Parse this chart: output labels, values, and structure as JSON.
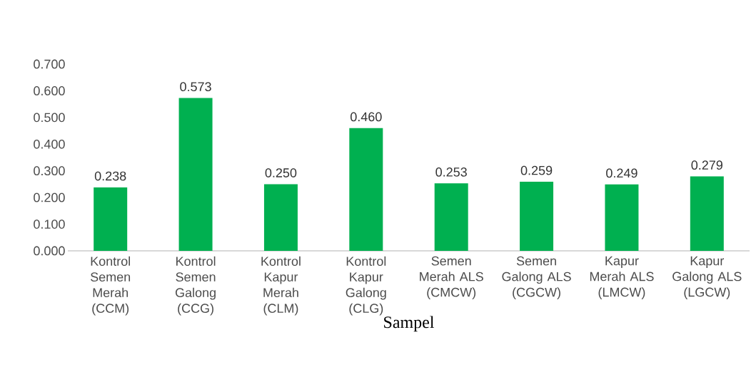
{
  "chart_data": {
    "type": "bar",
    "xlabel": "Sampel",
    "categories": [
      "Kontrol Semen Merah (CCM)",
      "Kontrol Semen Galong (CCG)",
      "Kontrol Kapur Merah (CLM)",
      "Kontrol Kapur Galong (CLG)",
      "Semen Merah ALS (CMCW)",
      "Semen Galong ALS (CGCW)",
      "Kapur Merah ALS (LMCW)",
      "Kapur Galong ALS (LGCW)"
    ],
    "values": [
      0.238,
      0.573,
      0.25,
      0.46,
      0.253,
      0.259,
      0.249,
      0.279
    ],
    "value_labels": [
      "0.238",
      "0.573",
      "0.250",
      "0.460",
      "0.253",
      "0.259",
      "0.249",
      "0.279"
    ],
    "color": "#00b050",
    "ylim": [
      0,
      0.7
    ],
    "yticks": [
      {
        "value": 0,
        "label": "0.000"
      },
      {
        "value": 0.1,
        "label": "0.100"
      },
      {
        "value": 0.2,
        "label": "0.200"
      },
      {
        "value": 0.3,
        "label": "0.300"
      },
      {
        "value": 0.4,
        "label": "0.400"
      },
      {
        "value": 0.5,
        "label": "0.500"
      },
      {
        "value": 0.6,
        "label": "0.600"
      },
      {
        "value": 0.7,
        "label": "0.700"
      }
    ],
    "grid": false
  }
}
